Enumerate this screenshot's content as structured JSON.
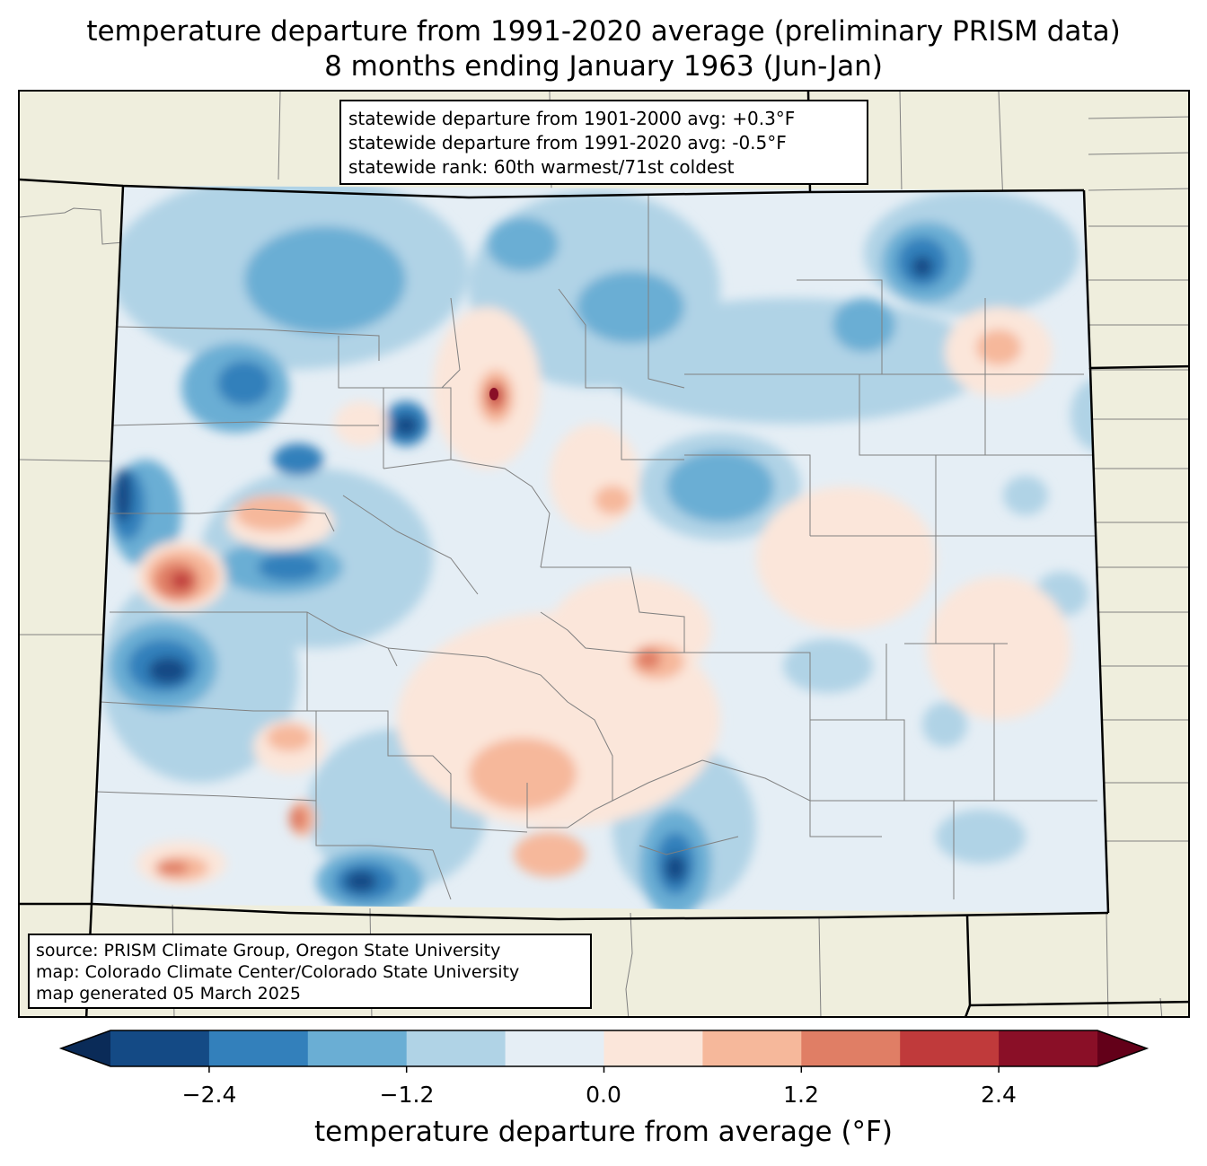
{
  "title": {
    "line1": "temperature departure from 1991-2020 average (preliminary PRISM data)",
    "line2": "8 months ending January 1963 (Jun-Jan)"
  },
  "stats": {
    "line1": "statewide departure from 1901-2000 avg: +0.3°F",
    "line2": "statewide departure from 1991-2020 avg: -0.5°F",
    "line3": "statewide rank: 60th warmest/71st coldest"
  },
  "source": {
    "line1": "source: PRISM Climate Group, Oregon State University",
    "line2": "map: Colorado Climate Center/Colorado State University",
    "line3": "map generated 05 March 2025"
  },
  "colorbar": {
    "title": "temperature departure from average (°F)",
    "ticks": [
      "−2.4",
      "−1.2",
      "0.0",
      "1.2",
      "2.4"
    ],
    "bounds": [
      -3.0,
      -2.4,
      -1.8,
      -1.2,
      -0.6,
      0.0,
      0.6,
      1.2,
      1.8,
      2.4,
      3.0
    ],
    "colors": [
      "#144a85",
      "#3380bb",
      "#6aaed4",
      "#b0d3e6",
      "#e5eef5",
      "#fbe6da",
      "#f6b89b",
      "#e07e65",
      "#c03a3b",
      "#8a0f27"
    ],
    "under_color": "#0a2b58",
    "over_color": "#630019"
  },
  "colors": {
    "land": "#efeedd",
    "county_line": "#808080",
    "state_line": "#000000",
    "base_fill": "#e5eef5"
  }
}
